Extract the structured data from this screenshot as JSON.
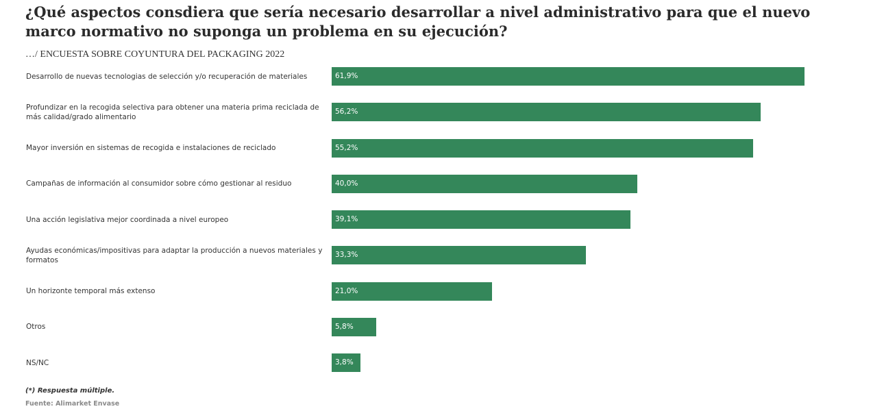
{
  "header": {
    "title": "¿Qué aspectos consdiera que sería necesario desarrollar a nivel administrativo para que el nuevo marco normativo no suponga un problema en su ejecución?",
    "subtitle": "…/ ENCUESTA SOBRE COYUNTURA DEL PACKAGING 2022"
  },
  "footer": {
    "note": "(*) Respuesta múltiple.",
    "source": "Fuente: Alimarket Envase"
  },
  "colors": {
    "bar": "#34875a",
    "bar_text": "#ffffff"
  },
  "chart_data": {
    "type": "bar",
    "orientation": "horizontal",
    "title": "¿Qué aspectos consdiera que sería necesario desarrollar a nivel administrativo para que el nuevo marco normativo no suponga un problema en su ejecución?",
    "subtitle": "…/ ENCUESTA SOBRE COYUNTURA DEL PACKAGING 2022",
    "xlabel": "",
    "ylabel": "",
    "xlim": [
      0,
      70
    ],
    "grid": false,
    "categories": [
      "Desarrollo de nuevas tecnologias de selección y/o recuperación de materiales",
      "Profundizar en la recogida selectiva para obtener una materia prima reciclada de más calidad/grado alimentario",
      "Mayor inversión en sistemas de recogida e instalaciones de reciclado",
      "Campañas de información al consumidor sobre cómo gestionar al residuo",
      "Una acción legislativa mejor coordinada a nivel europeo",
      "Ayudas económicas/impositivas para adaptar la producción a nuevos materiales y formatos",
      "Un horizonte temporal más extenso",
      "Otros",
      "NS/NC"
    ],
    "values": [
      61.9,
      56.2,
      55.2,
      40.0,
      39.1,
      33.3,
      21.0,
      5.8,
      3.8
    ],
    "value_labels": [
      "61,9%",
      "56,2%",
      "55,2%",
      "40,0%",
      "39,1%",
      "33,3%",
      "21,0%",
      "5,8%",
      "3,8%"
    ]
  }
}
